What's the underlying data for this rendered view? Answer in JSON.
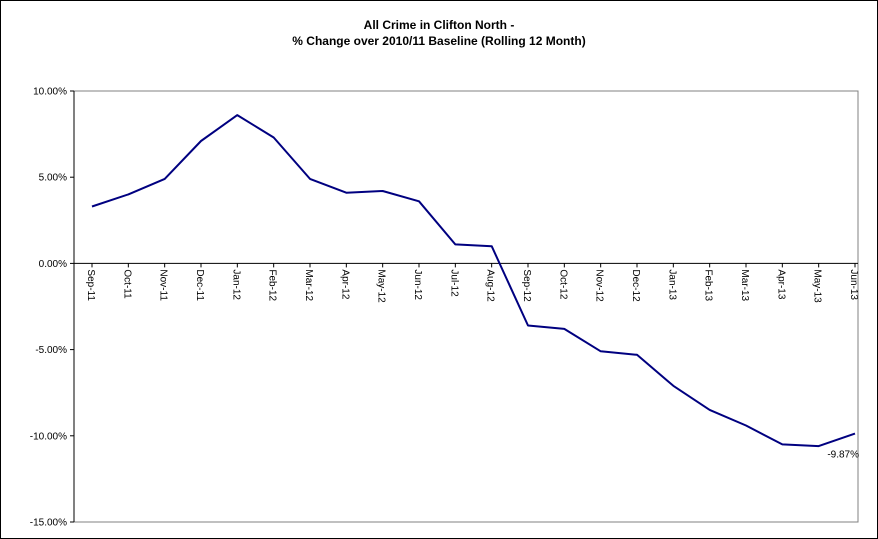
{
  "chart_data": {
    "type": "line",
    "title_lines": [
      "All Crime in Clifton North -",
      "% Change over 2010/11 Baseline (Rolling 12 Month)"
    ],
    "xlabel": "",
    "ylabel": "",
    "ylim": [
      -15,
      10
    ],
    "yticks": [
      10,
      5,
      0,
      -5,
      -10,
      -15
    ],
    "ytick_labels": [
      "10.00%",
      "5.00%",
      "0.00%",
      "-5.00%",
      "-10.00%",
      "-15.00%"
    ],
    "grid": false,
    "legend": "none",
    "line_color": "#000080",
    "categories": [
      "Sep-11",
      "Oct-11",
      "Nov-11",
      "Dec-11",
      "Jan-12",
      "Feb-12",
      "Mar-12",
      "Apr-12",
      "May-12",
      "Jun-12",
      "Jul-12",
      "Aug-12",
      "Sep-12",
      "Oct-12",
      "Nov-12",
      "Dec-12",
      "Jan-13",
      "Feb-13",
      "Mar-13",
      "Apr-13",
      "May-13",
      "Jun-13"
    ],
    "tick_labels_rotated": [
      "Sep-11",
      "Oct-11",
      "Nov-11",
      "Dec-11",
      "Jan-12",
      "Feb-12",
      "Mar-12",
      "Apr-12",
      "May-12",
      "Jun-12",
      "Jul-12",
      "Aug-12",
      "Sep-12",
      "Oct-12",
      "Nov-12",
      "Dec-12",
      "Jan-13",
      "Feb-13",
      "Mar-13",
      "Apr-13",
      "May-13",
      "Jun-13"
    ],
    "series": [
      {
        "values": [
          3.3,
          4.0,
          4.9,
          7.1,
          8.6,
          7.3,
          4.9,
          4.1,
          4.2,
          3.6,
          1.1,
          1.0,
          -3.6,
          -3.8,
          -5.1,
          -5.3,
          -7.1,
          -8.5,
          -9.4,
          -10.5,
          -10.6,
          -9.87
        ]
      }
    ],
    "data_labels": [
      {
        "index": 21,
        "text": "-9.87%"
      }
    ]
  }
}
